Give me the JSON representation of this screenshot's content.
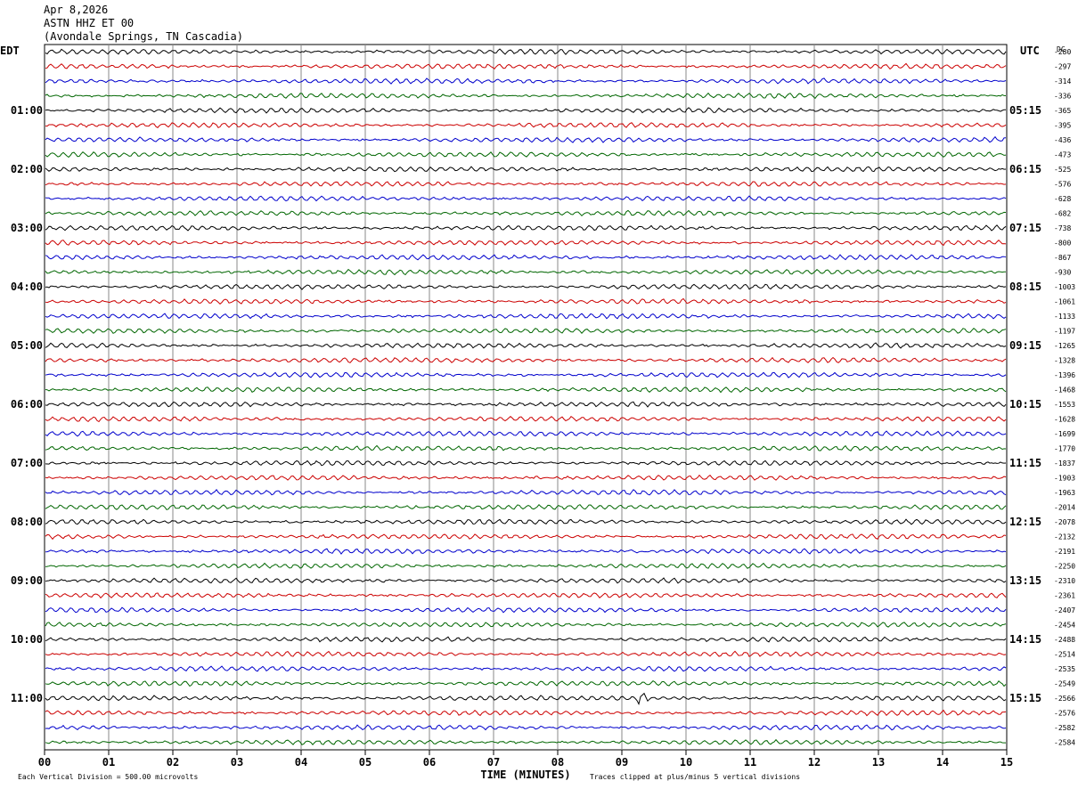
{
  "header": {
    "date": "Apr 8,2026",
    "station": "ASTN HHZ ET 00",
    "location": "(Avondale Springs, TN Cascadia)"
  },
  "chart_data": {
    "type": "line",
    "title": "",
    "left_tz": "EDT",
    "right_tz": "UTC",
    "dc_label": "DC",
    "xlabel": "TIME (MINUTES)",
    "x_ticks": [
      "00",
      "01",
      "02",
      "03",
      "04",
      "05",
      "06",
      "07",
      "08",
      "09",
      "10",
      "11",
      "12",
      "13",
      "14",
      "15"
    ],
    "xlim": [
      0,
      15
    ],
    "left_hour_labels": [
      "01:00",
      "02:00",
      "03:00",
      "04:00",
      "05:00",
      "06:00",
      "07:00",
      "08:00",
      "09:00",
      "10:00",
      "11:00"
    ],
    "right_hour_labels": [
      "05:15",
      "06:15",
      "07:15",
      "08:15",
      "09:15",
      "10:15",
      "11:15",
      "12:15",
      "13:15",
      "14:15",
      "15:15"
    ],
    "dc_offsets": [
      "-280",
      "-297",
      "-314",
      "-336",
      "-365",
      "-395",
      "-436",
      "-473",
      "-525",
      "-576",
      "-628",
      "-682",
      "-738",
      "-800",
      "-867",
      "-930",
      "-1003",
      "-1061",
      "-1133",
      "-1197",
      "-1265",
      "-1328",
      "-1396",
      "-1468",
      "-1553",
      "-1628",
      "-1699",
      "-1770",
      "-1837",
      "-1903",
      "-1963",
      "-2014",
      "-2078",
      "-2132",
      "-2191",
      "-2250",
      "-2310",
      "-2361",
      "-2407",
      "-2454",
      "-2488",
      "-2514",
      "-2535",
      "-2549",
      "-2566",
      "-2576",
      "-2582",
      "-2584"
    ],
    "trace_colors": [
      "#000000",
      "#cc0000",
      "#0000cc",
      "#006600"
    ],
    "grid": true,
    "footer_left": "Each Vertical Division =  500.00 microvolts",
    "footer_right": "Traces clipped at plus/minus 5 vertical divisions"
  }
}
